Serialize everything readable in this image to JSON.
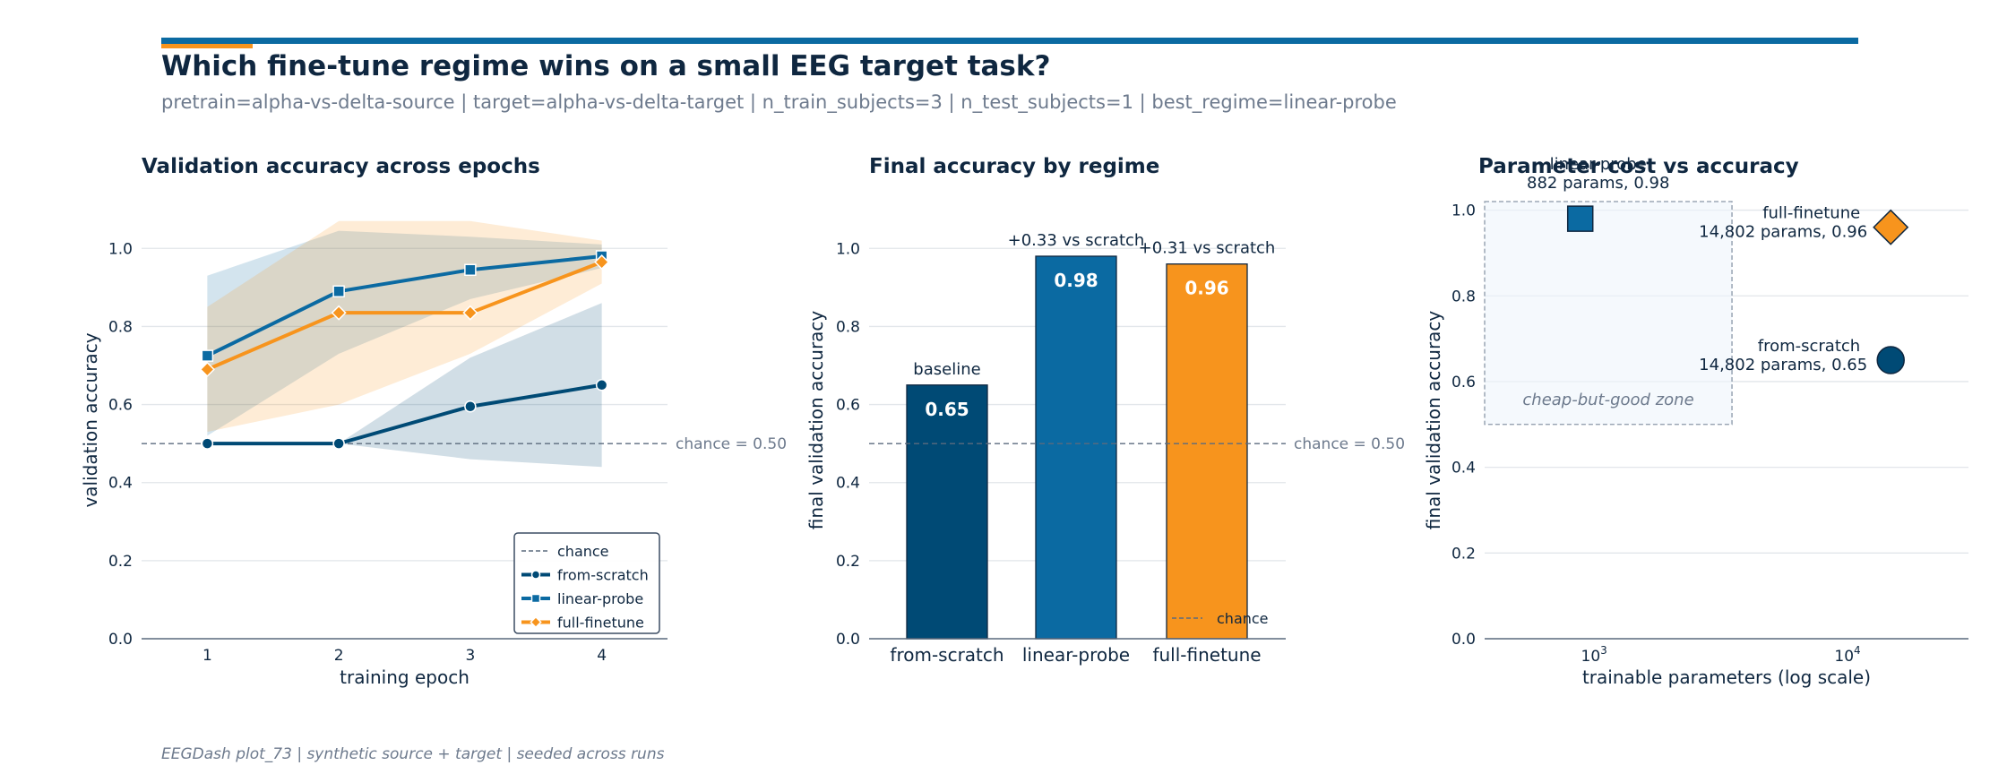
{
  "header": {
    "title": "Which fine-tune regime wins on a small EEG target task?",
    "subtitle": "pretrain=alpha-vs-delta-source | target=alpha-vs-delta-target | n_train_subjects=3 | n_test_subjects=1 | best_regime=linear-probe",
    "footer": "EEGDash plot_73 | synthetic source + target | seeded across runs",
    "accent_color": "#0b6aa2",
    "accent_secondary": "#f7941d"
  },
  "colors": {
    "from-scratch": "#004a75",
    "linear-probe": "#0b6aa2",
    "full-finetune": "#f7941d",
    "axis": "#5b6b7e",
    "text": "#0f2740",
    "muted": "#6d7a8d"
  },
  "chart_data": [
    {
      "type": "line",
      "title": "Validation accuracy across epochs",
      "xlabel": "training epoch",
      "ylabel": "validation accuracy",
      "x": [
        1,
        2,
        3,
        4
      ],
      "xlim": [
        0.5,
        4.5
      ],
      "ylim": [
        0.0,
        1.12
      ],
      "yticks": [
        "0.0",
        "0.2",
        "0.4",
        "0.6",
        "0.8",
        "1.0"
      ],
      "grid": true,
      "chance": 0.5,
      "chance_label": "chance = 0.50",
      "legend_position": "lower-right",
      "legend_entries": [
        "chance",
        "from-scratch",
        "linear-probe",
        "full-finetune"
      ],
      "series": [
        {
          "name": "from-scratch",
          "marker": "circle",
          "values": [
            0.5,
            0.5,
            0.595,
            0.65
          ],
          "band_low": [
            0.5,
            0.5,
            0.46,
            0.44
          ],
          "band_high": [
            0.5,
            0.5,
            0.72,
            0.86
          ]
        },
        {
          "name": "linear-probe",
          "marker": "square",
          "values": [
            0.725,
            0.89,
            0.945,
            0.98
          ],
          "band_low": [
            0.52,
            0.73,
            0.87,
            0.95
          ],
          "band_high": [
            0.93,
            1.045,
            1.03,
            1.01
          ]
        },
        {
          "name": "full-finetune",
          "marker": "diamond",
          "values": [
            0.69,
            0.835,
            0.835,
            0.965
          ],
          "band_low": [
            0.53,
            0.6,
            0.73,
            0.91
          ],
          "band_high": [
            0.85,
            1.07,
            1.07,
            1.02
          ]
        }
      ]
    },
    {
      "type": "bar",
      "title": "Final accuracy by regime",
      "ylabel": "final validation accuracy",
      "categories": [
        "from-scratch",
        "linear-probe",
        "full-finetune"
      ],
      "values": [
        0.65,
        0.98,
        0.96
      ],
      "value_labels": [
        "0.65",
        "0.98",
        "0.96"
      ],
      "annotations": [
        "baseline",
        "+0.33 vs scratch",
        "+0.31 vs scratch"
      ],
      "ylim": [
        0.0,
        1.12
      ],
      "yticks": [
        "0.0",
        "0.2",
        "0.4",
        "0.6",
        "0.8",
        "1.0"
      ],
      "grid": true,
      "chance": 0.5,
      "chance_label": "chance = 0.50",
      "legend_entries": [
        "chance"
      ],
      "legend_position": "lower-right"
    },
    {
      "type": "scatter",
      "title": "Parameter cost vs accuracy",
      "xlabel": "trainable parameters (log scale)",
      "ylabel": "final validation accuracy",
      "xscale": "log",
      "xlim": [
        370,
        30000
      ],
      "ylim": [
        0.0,
        1.02
      ],
      "xticks": [
        {
          "value": 1000,
          "label": "10",
          "exponent": "3"
        },
        {
          "value": 10000,
          "label": "10",
          "exponent": "4"
        }
      ],
      "yticks": [
        "0.0",
        "0.2",
        "0.4",
        "0.6",
        "0.8",
        "1.0"
      ],
      "grid": true,
      "zone": {
        "label": "cheap-but-good zone",
        "x_range": [
          370,
          3500
        ],
        "y_range": [
          0.5,
          1.02
        ]
      },
      "points": [
        {
          "name": "linear-probe",
          "params": 882,
          "accuracy": 0.98,
          "marker": "square",
          "label_name": "linear-probe",
          "label_detail": "882 params, 0.98"
        },
        {
          "name": "full-finetune",
          "params": 14802,
          "accuracy": 0.96,
          "marker": "diamond",
          "label_name": "full-finetune",
          "label_detail": "14,802 params, 0.96"
        },
        {
          "name": "from-scratch",
          "params": 14802,
          "accuracy": 0.65,
          "marker": "circle",
          "label_name": "from-scratch",
          "label_detail": "14,802 params, 0.65"
        }
      ]
    }
  ]
}
